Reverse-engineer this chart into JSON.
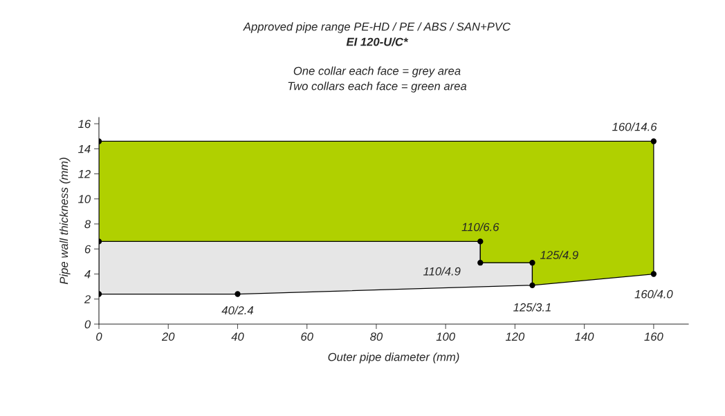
{
  "chart_data": {
    "type": "area",
    "title": "Approved pipe range PE-HD / PE / ABS / SAN+PVC",
    "subtitle": "EI 120-U/C*",
    "xlabel": "Outer pipe diameter (mm)",
    "ylabel": "Pipe wall thickness (mm)",
    "series": [
      {
        "color": "#b0d000",
        "x": [
          0,
          160,
          160,
          125,
          125,
          110,
          110,
          0
        ],
        "values": [
          14.6,
          14.6,
          4.0,
          3.1,
          4.9,
          4.9,
          6.6,
          6.6
        ]
      },
      {
        "color": "#e6e6e6",
        "x": [
          0,
          110,
          110,
          125,
          125,
          40,
          0
        ],
        "values": [
          6.6,
          6.6,
          4.9,
          4.9,
          3.1,
          2.4,
          2.4
        ]
      },
      {
        "type": "scatter",
        "color": "#000000",
        "marker": "circle",
        "x": [
          0,
          160,
          0,
          110,
          110,
          125,
          125,
          160,
          0,
          40
        ],
        "values": [
          14.6,
          14.6,
          6.6,
          6.6,
          4.9,
          4.9,
          3.1,
          4.0,
          2.4,
          2.4
        ]
      }
    ],
    "annotations": [
      "One collar each face = grey area",
      "Two collars each face = green area",
      {
        "text": "160/14.6",
        "x": 160,
        "y": 14.6
      },
      {
        "text": "110/6.6",
        "x": 110,
        "y": 6.6
      },
      {
        "text": "110/4.9",
        "x": 110,
        "y": 4.9
      },
      {
        "text": "125/4.9",
        "x": 125,
        "y": 4.9
      },
      {
        "text": "125/3.1",
        "x": 125,
        "y": 3.1
      },
      {
        "text": "160/4.0",
        "x": 160,
        "y": 4.0
      },
      {
        "text": "40/2.4",
        "x": 40,
        "y": 2.4
      }
    ],
    "xlim": [
      0,
      170
    ],
    "ylim": [
      0,
      16.5
    ],
    "xticks": [
      0,
      20,
      40,
      60,
      80,
      100,
      120,
      140,
      160
    ],
    "yticks": [
      0,
      2,
      4,
      6,
      8,
      10,
      12,
      14,
      16
    ],
    "grid": false,
    "legend": false
  }
}
